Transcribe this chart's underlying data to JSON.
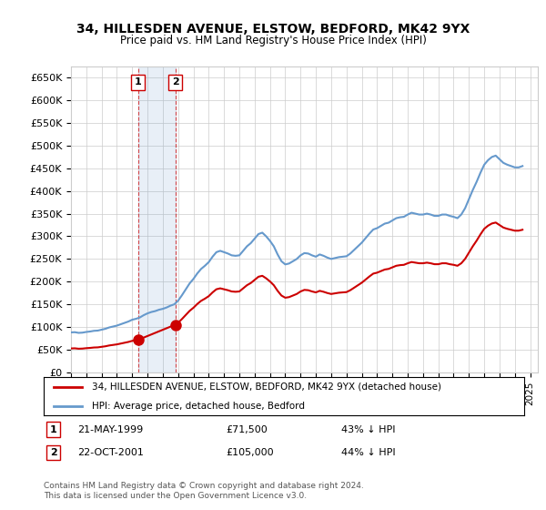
{
  "title": "34, HILLESDEN AVENUE, ELSTOW, BEDFORD, MK42 9YX",
  "subtitle": "Price paid vs. HM Land Registry's House Price Index (HPI)",
  "xlabel": "",
  "ylabel": "",
  "ylim": [
    0,
    675000
  ],
  "xlim": [
    1995.0,
    2025.5
  ],
  "yticks": [
    0,
    50000,
    100000,
    150000,
    200000,
    250000,
    300000,
    350000,
    400000,
    450000,
    500000,
    550000,
    600000,
    650000
  ],
  "ytick_labels": [
    "£0",
    "£50K",
    "£100K",
    "£150K",
    "£200K",
    "£250K",
    "£300K",
    "£350K",
    "£400K",
    "£450K",
    "£500K",
    "£550K",
    "£600K",
    "£650K"
  ],
  "property_color": "#cc0000",
  "hpi_color": "#6699cc",
  "property_label": "34, HILLESDEN AVENUE, ELSTOW, BEDFORD, MK42 9YX (detached house)",
  "hpi_label": "HPI: Average price, detached house, Bedford",
  "transaction_1_date": 1999.38,
  "transaction_1_price": 71500,
  "transaction_1_label": "1",
  "transaction_1_text": "21-MAY-1999",
  "transaction_1_price_text": "£71,500",
  "transaction_1_hpi_text": "43% ↓ HPI",
  "transaction_2_date": 2001.81,
  "transaction_2_price": 105000,
  "transaction_2_label": "2",
  "transaction_2_text": "22-OCT-2001",
  "transaction_2_price_text": "£105,000",
  "transaction_2_hpi_text": "44% ↓ HPI",
  "footer_text": "Contains HM Land Registry data © Crown copyright and database right 2024.\nThis data is licensed under the Open Government Licence v3.0.",
  "background_color": "#ffffff",
  "grid_color": "#cccccc",
  "hpi_data_x": [
    1995.0,
    1995.25,
    1995.5,
    1995.75,
    1996.0,
    1996.25,
    1996.5,
    1996.75,
    1997.0,
    1997.25,
    1997.5,
    1997.75,
    1998.0,
    1998.25,
    1998.5,
    1998.75,
    1999.0,
    1999.25,
    1999.5,
    1999.75,
    2000.0,
    2000.25,
    2000.5,
    2000.75,
    2001.0,
    2001.25,
    2001.5,
    2001.75,
    2002.0,
    2002.25,
    2002.5,
    2002.75,
    2003.0,
    2003.25,
    2003.5,
    2003.75,
    2004.0,
    2004.25,
    2004.5,
    2004.75,
    2005.0,
    2005.25,
    2005.5,
    2005.75,
    2006.0,
    2006.25,
    2006.5,
    2006.75,
    2007.0,
    2007.25,
    2007.5,
    2007.75,
    2008.0,
    2008.25,
    2008.5,
    2008.75,
    2009.0,
    2009.25,
    2009.5,
    2009.75,
    2010.0,
    2010.25,
    2010.5,
    2010.75,
    2011.0,
    2011.25,
    2011.5,
    2011.75,
    2012.0,
    2012.25,
    2012.5,
    2012.75,
    2013.0,
    2013.25,
    2013.5,
    2013.75,
    2014.0,
    2014.25,
    2014.5,
    2014.75,
    2015.0,
    2015.25,
    2015.5,
    2015.75,
    2016.0,
    2016.25,
    2016.5,
    2016.75,
    2017.0,
    2017.25,
    2017.5,
    2017.75,
    2018.0,
    2018.25,
    2018.5,
    2018.75,
    2019.0,
    2019.25,
    2019.5,
    2019.75,
    2020.0,
    2020.25,
    2020.5,
    2020.75,
    2021.0,
    2021.25,
    2021.5,
    2021.75,
    2022.0,
    2022.25,
    2022.5,
    2022.75,
    2023.0,
    2023.25,
    2023.5,
    2023.75,
    2024.0,
    2024.25,
    2024.5
  ],
  "hpi_data_y": [
    88000,
    88500,
    87000,
    87500,
    89000,
    90000,
    91500,
    92000,
    94000,
    96000,
    99000,
    101000,
    103000,
    106000,
    109000,
    112000,
    116000,
    118000,
    121000,
    126000,
    130000,
    133000,
    135000,
    138000,
    140000,
    143000,
    147000,
    150000,
    158000,
    170000,
    183000,
    196000,
    206000,
    218000,
    228000,
    235000,
    243000,
    255000,
    265000,
    268000,
    265000,
    262000,
    258000,
    257000,
    258000,
    268000,
    278000,
    285000,
    295000,
    305000,
    308000,
    300000,
    290000,
    278000,
    260000,
    245000,
    238000,
    240000,
    245000,
    250000,
    258000,
    263000,
    262000,
    258000,
    255000,
    260000,
    257000,
    253000,
    250000,
    252000,
    254000,
    255000,
    256000,
    262000,
    270000,
    278000,
    286000,
    296000,
    306000,
    315000,
    318000,
    323000,
    328000,
    330000,
    335000,
    340000,
    342000,
    343000,
    348000,
    352000,
    350000,
    348000,
    348000,
    350000,
    348000,
    345000,
    345000,
    348000,
    348000,
    345000,
    343000,
    340000,
    348000,
    362000,
    382000,
    402000,
    420000,
    440000,
    458000,
    468000,
    475000,
    478000,
    470000,
    462000,
    458000,
    455000,
    452000,
    452000,
    455000
  ],
  "property_data_x": [
    1995.0,
    1999.38,
    2001.81,
    2024.5
  ],
  "property_data_y": [
    50000,
    71500,
    105000,
    305000
  ]
}
